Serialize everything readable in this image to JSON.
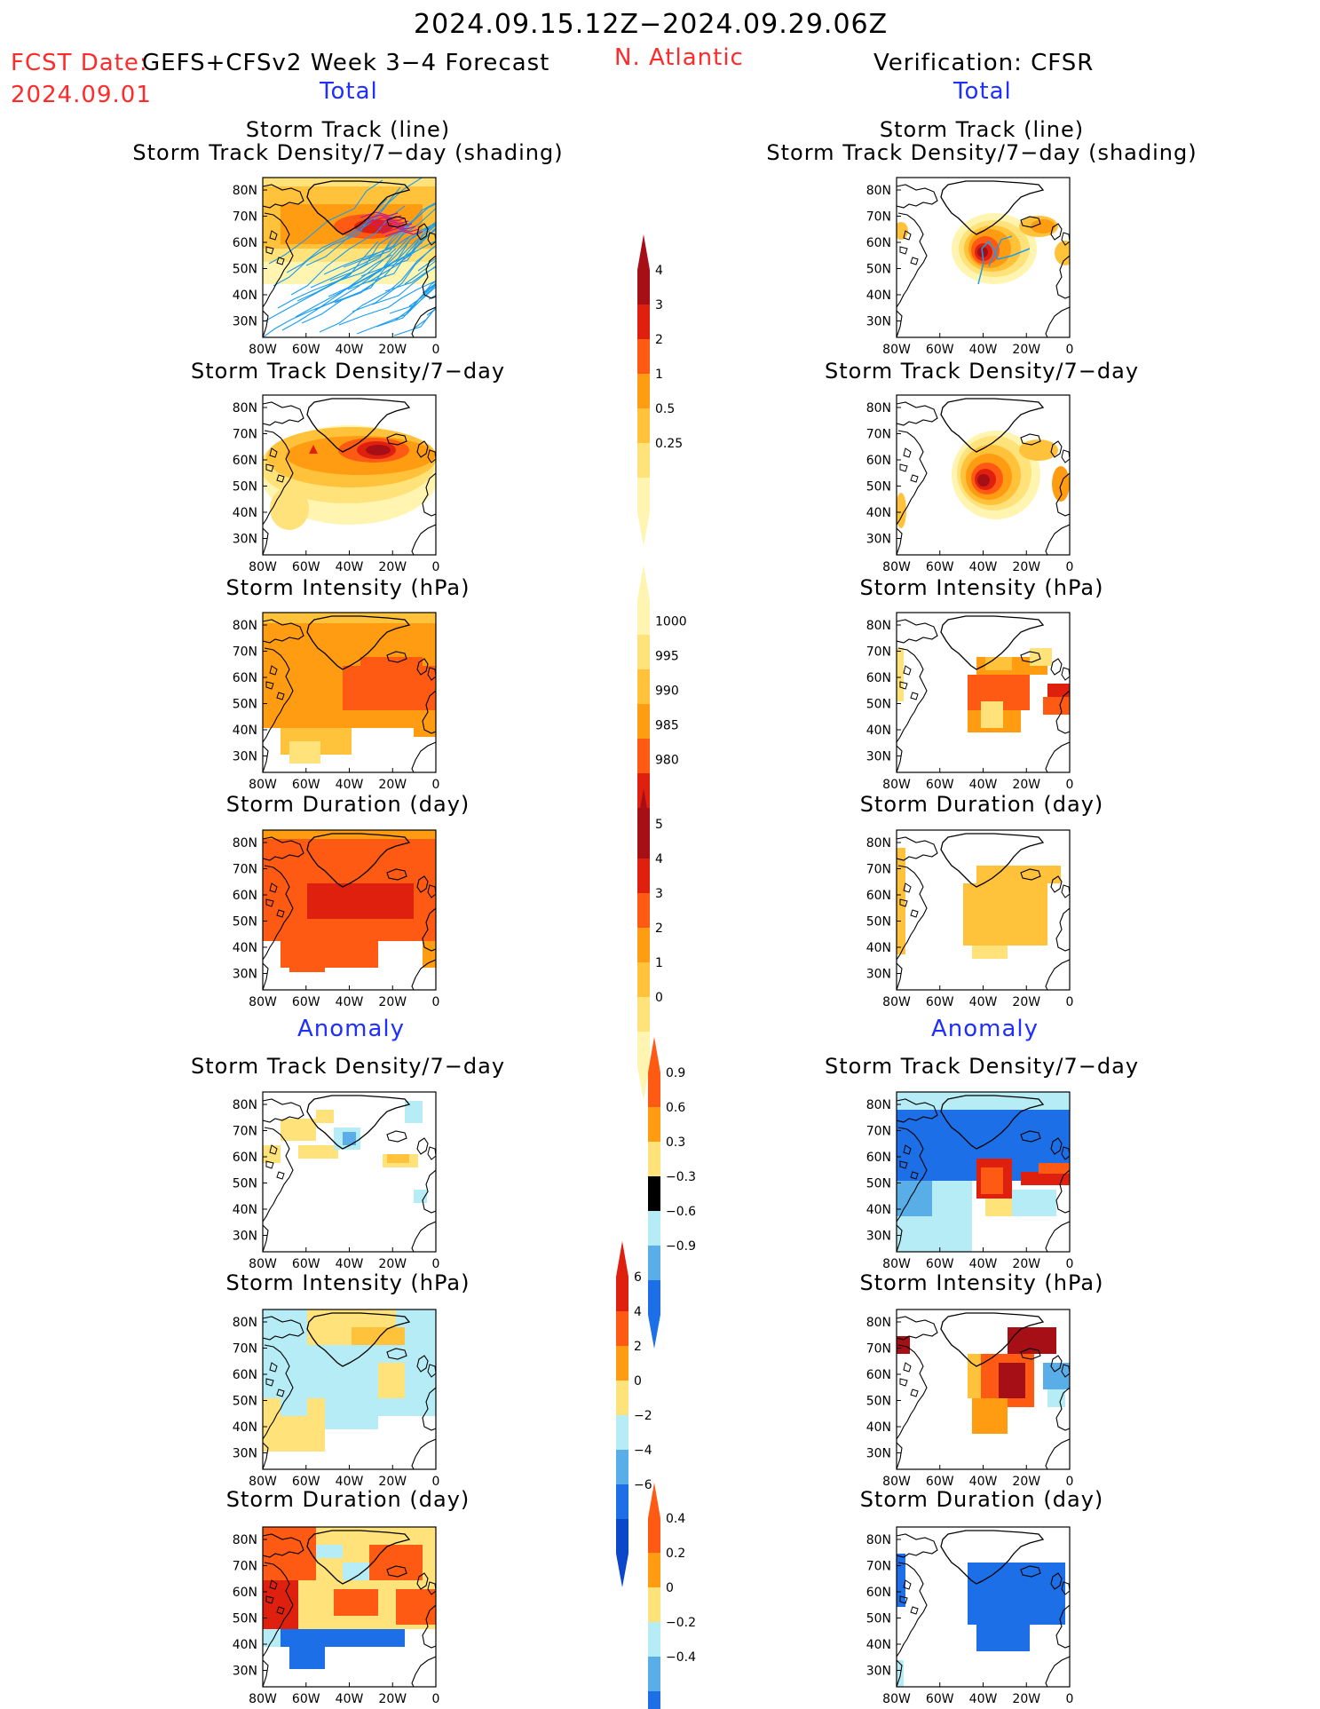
{
  "header": {
    "period": "2024.09.15.12Z−2024.09.29.06Z",
    "fcst_date_label": "FCST Date:",
    "fcst_date": "2024.09.01",
    "model": "GEFS+CFSv2 Week 3−4 Forecast",
    "region": "N. Atlantic",
    "verification": "Verification: CFSR",
    "total_left": "Total",
    "total_right": "Total",
    "anomaly_left": "Anomaly",
    "anomaly_right": "Anomaly"
  },
  "panel_titles": {
    "track_line": "Storm Track (line)",
    "track_shading": "Storm Track Density/7−day (shading)",
    "density": "Storm Track Density/7−day",
    "intensity": "Storm Intensity (hPa)",
    "duration": "Storm Duration (day)"
  },
  "axes": {
    "lat_ticks": [
      "80N",
      "70N",
      "60N",
      "50N",
      "40N",
      "30N"
    ],
    "lon_ticks": [
      "80W",
      "60W",
      "40W",
      "20W",
      "0"
    ]
  },
  "colorbars": {
    "density_total": [
      "4",
      "3",
      "2",
      "1",
      "0.5",
      "0.25"
    ],
    "intensity_total": [
      "1000",
      "995",
      "990",
      "985",
      "980"
    ],
    "duration_total": [
      "5",
      "4",
      "3",
      "2",
      "1",
      "0"
    ],
    "density_anom": [
      "0.9",
      "0.6",
      "0.3",
      "−0.3",
      "−0.6",
      "−0.9"
    ],
    "intensity_anom": [
      "6",
      "4",
      "2",
      "0",
      "−2",
      "−4",
      "−6"
    ],
    "duration_anom": [
      "0.4",
      "0.2",
      "0",
      "−0.2",
      "−0.4"
    ]
  },
  "colors": {
    "title_red": "#ff2a2a",
    "label_blue": "#1f2fff",
    "track_blue": "#1a9cf0",
    "darkred": "#a50f15",
    "red": "#e0200f",
    "orangered": "#ff5a14",
    "orange": "#ff9c12",
    "lightorange": "#ffc23a",
    "yellow": "#ffe27a",
    "paleyellow": "#fff5b0",
    "lightblue": "#b5ecf5",
    "midblue": "#5aaee8",
    "blue": "#1c6fe6",
    "darkblue": "#0b48c9"
  },
  "chart_data": [
    {
      "type": "heatmap",
      "panel": "forecast_total_track_density",
      "title": "Storm Track (line) / Storm Track Density/7-day (shading)",
      "lon_range": [
        -80,
        0
      ],
      "lat_range": [
        25,
        85
      ],
      "max_region": "60-65N, 20-30W"
    },
    {
      "type": "heatmap",
      "panel": "verification_total_track_density",
      "title": "Storm Track (line) / Storm Track Density/7-day (shading)",
      "lon_range": [
        -80,
        0
      ],
      "lat_range": [
        25,
        85
      ],
      "max_region": "50N, 35W"
    },
    {
      "type": "heatmap",
      "panel": "forecast_total_density",
      "title": "Storm Track Density/7-day",
      "colorbar": [
        0.25,
        0.5,
        1,
        2,
        3,
        4
      ]
    },
    {
      "type": "heatmap",
      "panel": "verification_total_density",
      "title": "Storm Track Density/7-day",
      "colorbar": [
        0.25,
        0.5,
        1,
        2,
        3,
        4
      ]
    },
    {
      "type": "heatmap",
      "panel": "forecast_total_intensity",
      "title": "Storm Intensity (hPa)",
      "colorbar": [
        1000,
        995,
        990,
        985,
        980
      ]
    },
    {
      "type": "heatmap",
      "panel": "verification_total_intensity",
      "title": "Storm Intensity (hPa)",
      "colorbar": [
        1000,
        995,
        990,
        985,
        980
      ]
    },
    {
      "type": "heatmap",
      "panel": "forecast_total_duration",
      "title": "Storm Duration (day)",
      "colorbar": [
        0,
        1,
        2,
        3,
        4,
        5
      ]
    },
    {
      "type": "heatmap",
      "panel": "verification_total_duration",
      "title": "Storm Duration (day)",
      "colorbar": [
        0,
        1,
        2,
        3,
        4,
        5
      ]
    },
    {
      "type": "heatmap",
      "panel": "forecast_anomaly_density",
      "title": "Storm Track Density/7-day",
      "colorbar": [
        -0.9,
        -0.6,
        -0.3,
        0.3,
        0.6,
        0.9
      ]
    },
    {
      "type": "heatmap",
      "panel": "verification_anomaly_density",
      "title": "Storm Track Density/7-day",
      "colorbar": [
        -0.9,
        -0.6,
        -0.3,
        0.3,
        0.6,
        0.9
      ]
    },
    {
      "type": "heatmap",
      "panel": "forecast_anomaly_intensity",
      "title": "Storm Intensity (hPa)",
      "colorbar": [
        -6,
        -4,
        -2,
        0,
        2,
        4,
        6
      ]
    },
    {
      "type": "heatmap",
      "panel": "verification_anomaly_intensity",
      "title": "Storm Intensity (hPa)",
      "colorbar": [
        -6,
        -4,
        -2,
        0,
        2,
        4,
        6
      ]
    },
    {
      "type": "heatmap",
      "panel": "forecast_anomaly_duration",
      "title": "Storm Duration (day)",
      "colorbar": [
        -0.4,
        -0.2,
        0,
        0.2,
        0.4
      ]
    },
    {
      "type": "heatmap",
      "panel": "verification_anomaly_duration",
      "title": "Storm Duration (day)",
      "colorbar": [
        -0.4,
        -0.2,
        0,
        0.2,
        0.4
      ]
    }
  ]
}
